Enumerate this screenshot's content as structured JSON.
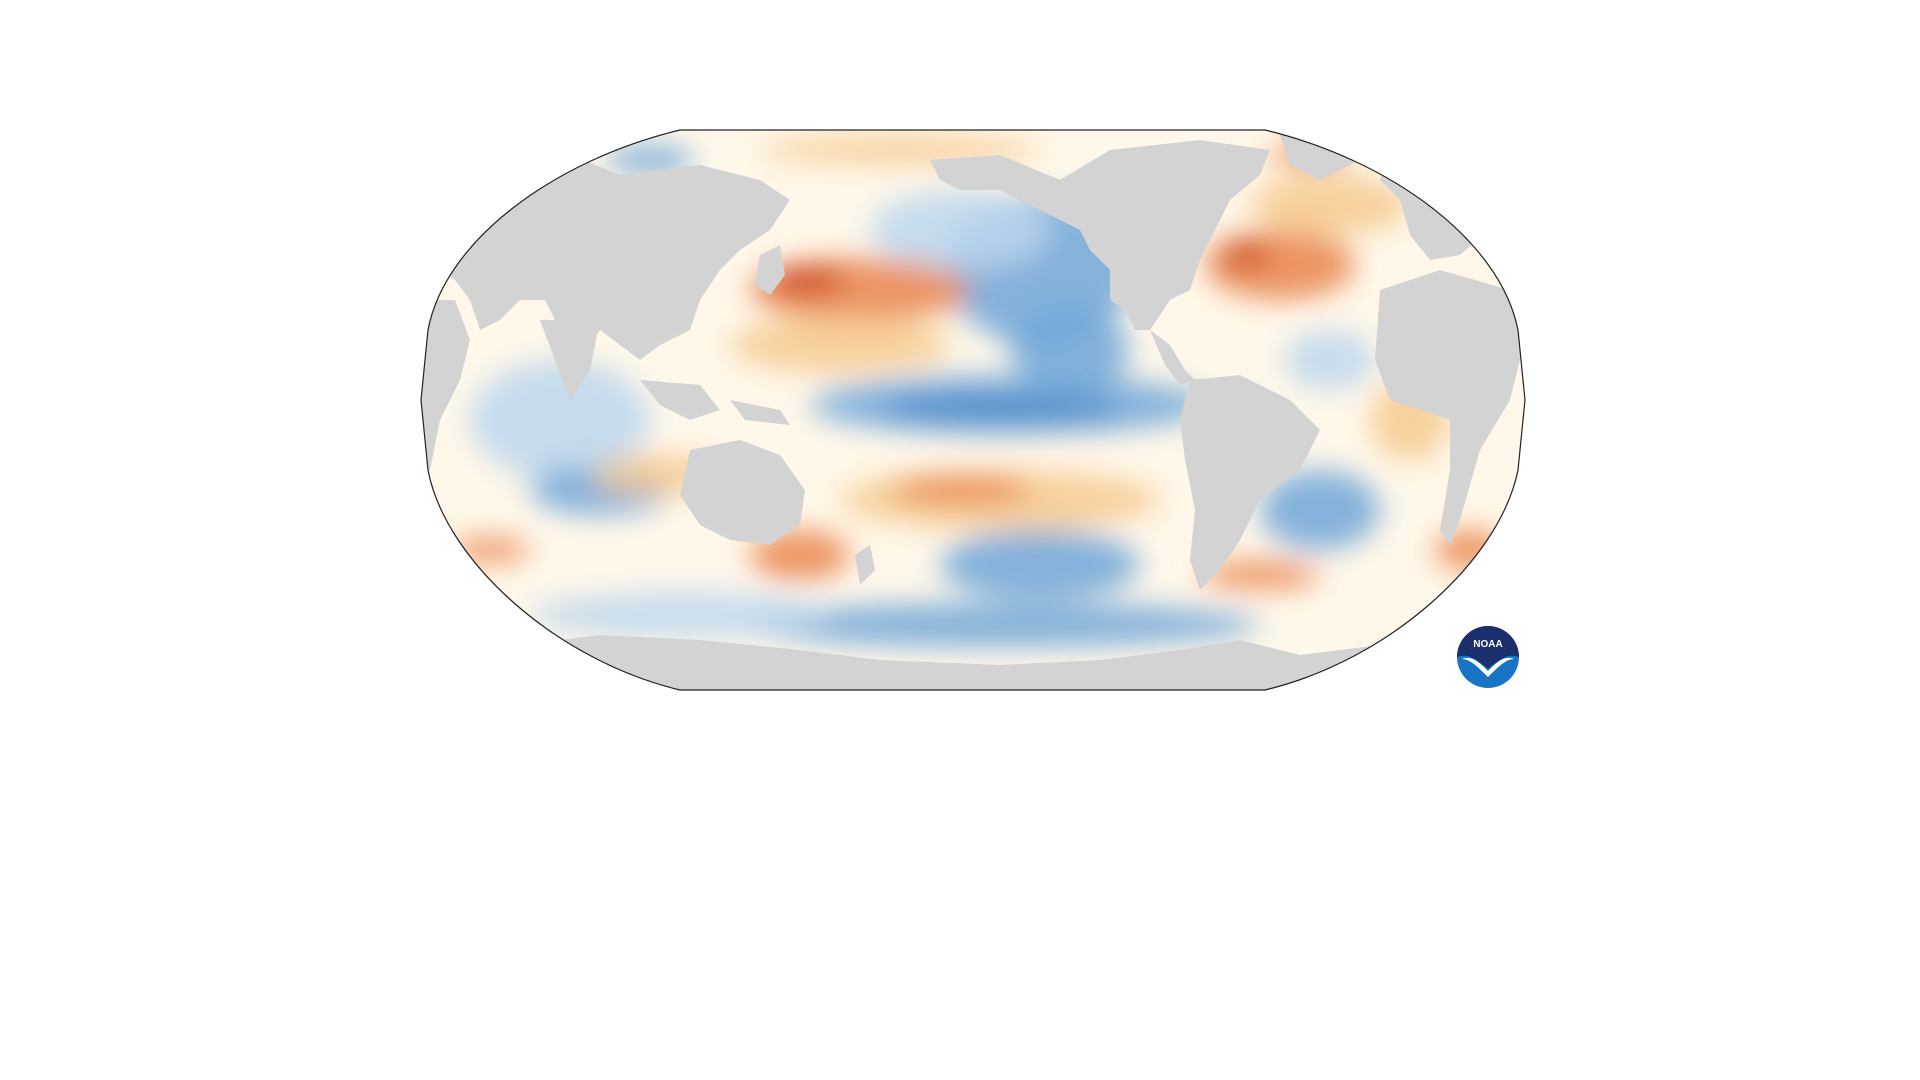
{
  "map": {
    "projection": "robinson",
    "land_color": "#d3d3d3",
    "outline_color": "#222222",
    "colors": {
      "strong_warm": "#c8401f",
      "warm": "#e9844a",
      "mild_warm": "#f6c98e",
      "neutral": "#fff8ea",
      "mild_cool": "#bcd6ee",
      "cool": "#6ea6d8",
      "strong_cool": "#2f77c2"
    }
  },
  "logo": {
    "name": "noaa-logo",
    "text": "NOAA",
    "top_color": "#1b2e6e",
    "bottom_color": "#1a74c6"
  }
}
